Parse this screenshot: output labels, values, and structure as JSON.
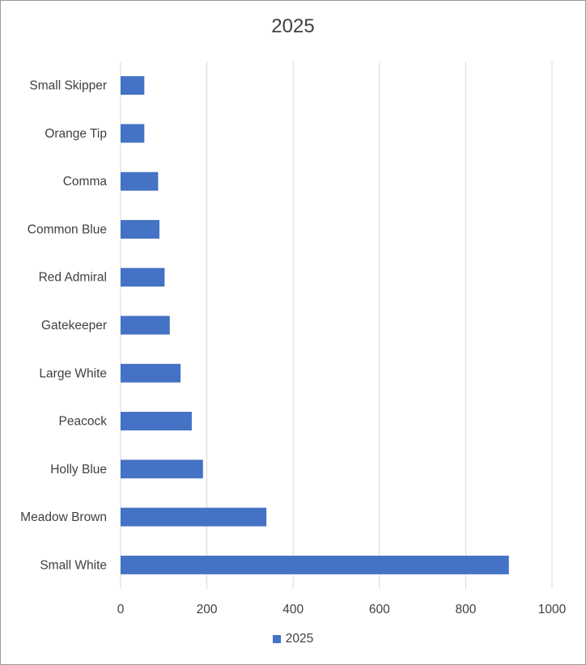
{
  "chart_data": {
    "type": "bar",
    "orientation": "horizontal",
    "title": "2025",
    "categories": [
      "Small White",
      "Meadow Brown",
      "Holly Blue",
      "Peacock",
      "Large White",
      "Gatekeeper",
      "Red Admiral",
      "Common Blue",
      "Comma",
      "Orange Tip",
      "Small Skipper"
    ],
    "series": [
      {
        "name": "2025",
        "values": [
          900,
          338,
          191,
          165,
          139,
          114,
          102,
          90,
          87,
          55,
          55
        ],
        "color": "#4472C4"
      }
    ],
    "xlim": [
      0,
      1000
    ],
    "xticks": [
      0,
      200,
      400,
      600,
      800,
      1000
    ],
    "grid": true,
    "legend_position": "bottom"
  }
}
